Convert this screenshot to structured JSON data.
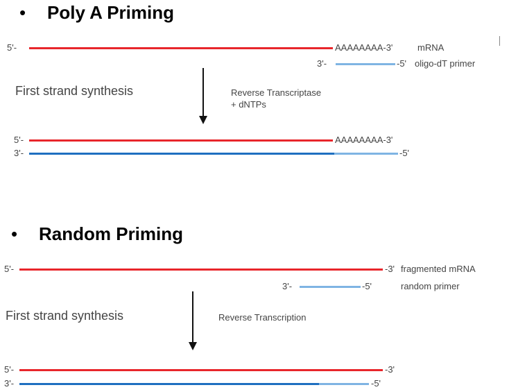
{
  "section1": {
    "bullet": "•",
    "title": "Poly A Priming",
    "mrna_5": "5'-",
    "mrna_tail": "AAAAAAAA-3'",
    "mrna_label": "mRNA",
    "primer_3": "3'-",
    "primer_5": "-5'",
    "primer_label": "oligo-dT primer",
    "step": "First strand synthesis",
    "enzyme_line1": "Reverse Transcriptase",
    "enzyme_line2": "+ dNTPs",
    "res_top_5": "5'-",
    "res_top_tail": "AAAAAAAA-3'",
    "res_bot_3": "3'-",
    "res_bot_5": "-5'"
  },
  "section2": {
    "bullet": "•",
    "title": "Random Priming",
    "mrna_5": "5'-",
    "mrna_3": "-3'",
    "mrna_label": "fragmented mRNA",
    "primer_3": "3'-",
    "primer_5": "-5'",
    "primer_label": "random primer",
    "step": "First strand synthesis",
    "enzyme": "Reverse Transcription",
    "res_top_5": "5'-",
    "res_top_3": "-3'",
    "res_bot_3": "3'-",
    "res_bot_5": "-5'"
  },
  "colors": {
    "mrna": "#e8262b",
    "cdna": "#1f6fc0",
    "primer": "#7fb4e3"
  }
}
